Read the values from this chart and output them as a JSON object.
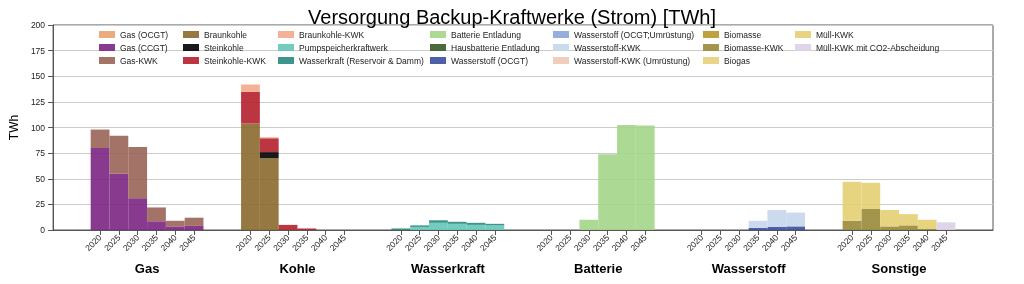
{
  "chart_data": {
    "type": "bar",
    "stacked": true,
    "title": "Versorgung Backup-Kraftwerke (Strom) [TWh]",
    "ylabel": "TWh",
    "categories": [
      null,
      null,
      "2020",
      "2025",
      "2030",
      "2035",
      "2040",
      "2045",
      null,
      null,
      "2020",
      "2025",
      "2030",
      "2035",
      "2040",
      "2045",
      null,
      null,
      "2020",
      "2025",
      "2030",
      "2035",
      "2040",
      "2045",
      null,
      null,
      "2020",
      "2025",
      "2030",
      "2035",
      "2040",
      "2045",
      null,
      null,
      "2020",
      "2025",
      "2030",
      "2035",
      "2040",
      "2045",
      null,
      null,
      "2020",
      "2025",
      "2030",
      "2035",
      "2040",
      "2045",
      null,
      null
    ],
    "annotations": [
      "Gas",
      "Kohle",
      "Wasserkraft",
      "Batterie",
      "Wasserstoff",
      "Sonstige"
    ],
    "ylim": [
      0,
      200
    ],
    "yticks": [
      0,
      25,
      50,
      75,
      100,
      125,
      150,
      175,
      200
    ],
    "grid": "y",
    "legend": "top",
    "series": [
      {
        "name": "Gas (OCGT)",
        "color": "#e9a36f",
        "values": [
          null,
          null,
          null,
          null,
          null,
          null,
          null,
          null,
          null,
          null,
          null,
          null,
          null,
          null,
          null,
          null,
          null,
          null,
          null,
          null,
          null,
          null,
          null,
          null,
          null,
          null,
          null,
          null,
          null,
          null,
          null,
          null,
          null,
          null,
          null,
          null,
          null,
          null,
          null,
          null,
          null,
          null,
          null,
          null,
          null,
          null,
          null,
          null,
          null,
          null
        ]
      },
      {
        "name": "Gas (CCGT)",
        "color": "#7b2582",
        "values": [
          null,
          null,
          80,
          55,
          31,
          8.5,
          3.5,
          4,
          null,
          null,
          null,
          null,
          null,
          null,
          null,
          null,
          null,
          null,
          null,
          null,
          null,
          null,
          null,
          null,
          null,
          null,
          null,
          null,
          null,
          null,
          null,
          null,
          null,
          null,
          null,
          null,
          null,
          null,
          null,
          null,
          null,
          null,
          null,
          null,
          null,
          null,
          null,
          null,
          null,
          null
        ]
      },
      {
        "name": "Gas-KWK",
        "color": "#9a6458",
        "values": [
          null,
          null,
          18,
          37,
          50,
          13.5,
          5.5,
          8,
          null,
          null,
          null,
          null,
          null,
          null,
          null,
          null,
          null,
          null,
          null,
          null,
          null,
          null,
          null,
          null,
          null,
          null,
          null,
          null,
          null,
          null,
          null,
          null,
          null,
          null,
          null,
          null,
          null,
          null,
          null,
          null,
          null,
          null,
          null,
          null,
          null,
          null,
          null,
          null,
          null,
          null
        ]
      },
      {
        "name": "Braunkohle",
        "color": "#8b6a2e",
        "values": [
          null,
          null,
          null,
          null,
          null,
          null,
          null,
          null,
          null,
          null,
          104,
          70,
          null,
          null,
          null,
          null,
          null,
          null,
          null,
          null,
          null,
          null,
          null,
          null,
          null,
          null,
          null,
          null,
          null,
          null,
          null,
          null,
          null,
          null,
          null,
          null,
          null,
          null,
          null,
          null,
          null,
          null,
          null,
          null,
          null,
          null,
          null,
          null,
          null,
          null
        ]
      },
      {
        "name": "Steinkohle",
        "color": "#000000",
        "values": [
          null,
          null,
          null,
          null,
          null,
          null,
          null,
          null,
          null,
          null,
          null,
          6,
          null,
          null,
          null,
          null,
          null,
          null,
          null,
          null,
          null,
          null,
          null,
          null,
          null,
          null,
          null,
          null,
          null,
          null,
          null,
          null,
          null,
          null,
          null,
          null,
          null,
          null,
          null,
          null,
          null,
          null,
          null,
          null,
          null,
          null,
          null,
          null,
          null,
          null
        ]
      },
      {
        "name": "Steinkohle-KWK",
        "color": "#b5202d",
        "values": [
          null,
          null,
          null,
          null,
          null,
          null,
          null,
          null,
          null,
          null,
          31,
          13.5,
          5,
          1.5,
          null,
          null,
          null,
          null,
          null,
          null,
          null,
          null,
          null,
          null,
          null,
          null,
          null,
          null,
          null,
          null,
          null,
          null,
          null,
          null,
          null,
          null,
          null,
          null,
          null,
          null,
          null,
          null,
          null,
          null,
          null,
          null,
          null,
          null,
          null,
          null
        ]
      },
      {
        "name": "Braunkohle-KWK",
        "color": "#f4a98a",
        "values": [
          null,
          null,
          null,
          null,
          null,
          null,
          null,
          null,
          null,
          null,
          7,
          1,
          null,
          null,
          null,
          null,
          null,
          null,
          null,
          null,
          null,
          null,
          null,
          null,
          null,
          null,
          null,
          null,
          null,
          null,
          null,
          null,
          null,
          null,
          null,
          null,
          null,
          null,
          null,
          null,
          null,
          null,
          null,
          null,
          null,
          null,
          null,
          null,
          null,
          null
        ]
      },
      {
        "name": "Pumpspeicherkraftwerk",
        "color": "#63c6b8",
        "values": [
          null,
          null,
          null,
          null,
          null,
          null,
          null,
          null,
          null,
          null,
          null,
          null,
          null,
          null,
          null,
          null,
          null,
          null,
          null,
          3,
          7,
          6,
          5,
          4.5,
          null,
          null,
          null,
          null,
          null,
          null,
          null,
          null,
          null,
          null,
          null,
          null,
          null,
          null,
          null,
          null,
          null,
          null,
          null,
          null,
          null,
          null,
          null,
          null,
          null,
          null
        ]
      },
      {
        "name": "Wasserkraft (Reservoir & Damm)",
        "color": "#2a8a80",
        "values": [
          null,
          null,
          null,
          null,
          null,
          null,
          null,
          null,
          null,
          null,
          null,
          null,
          null,
          null,
          null,
          null,
          null,
          null,
          1.5,
          1.5,
          2.5,
          2,
          2,
          1.5,
          null,
          null,
          null,
          null,
          null,
          null,
          null,
          null,
          null,
          null,
          null,
          null,
          null,
          null,
          null,
          null,
          null,
          null,
          null,
          null,
          null,
          null,
          null,
          null,
          null,
          null
        ]
      },
      {
        "name": "Batterie Entladung",
        "color": "#a3d68a",
        "values": [
          null,
          null,
          null,
          null,
          null,
          null,
          null,
          null,
          null,
          null,
          null,
          null,
          null,
          null,
          null,
          null,
          null,
          null,
          null,
          null,
          null,
          null,
          null,
          null,
          null,
          null,
          null,
          null,
          10,
          74,
          102.5,
          102,
          null,
          null,
          null,
          null,
          null,
          null,
          null,
          null,
          null,
          null,
          null,
          null,
          null,
          null,
          null,
          null,
          null,
          null
        ]
      },
      {
        "name": "Hausbatterie Entladung",
        "color": "#3a5a25",
        "values": [
          null,
          null,
          null,
          null,
          null,
          null,
          null,
          null,
          null,
          null,
          null,
          null,
          null,
          null,
          null,
          null,
          null,
          null,
          null,
          null,
          null,
          null,
          null,
          null,
          null,
          null,
          null,
          null,
          null,
          null,
          null,
          null,
          null,
          null,
          null,
          null,
          null,
          null,
          null,
          null,
          null,
          null,
          null,
          null,
          null,
          null,
          null,
          null,
          null,
          null
        ]
      },
      {
        "name": "Wasserstoff (OCGT)",
        "color": "#3a4fa0",
        "values": [
          null,
          null,
          null,
          null,
          null,
          null,
          null,
          null,
          null,
          null,
          null,
          null,
          null,
          null,
          null,
          null,
          null,
          null,
          null,
          null,
          null,
          null,
          null,
          null,
          null,
          null,
          null,
          null,
          null,
          null,
          null,
          null,
          null,
          null,
          null,
          null,
          null,
          2,
          3,
          3.5,
          null,
          null,
          null,
          null,
          null,
          null,
          null,
          null,
          null,
          null
        ]
      },
      {
        "name": "Wasserstoff (OCGT;Umrüstung)",
        "color": "#8aa6d8",
        "values": [
          null,
          null,
          null,
          null,
          null,
          null,
          null,
          null,
          null,
          null,
          null,
          null,
          null,
          null,
          null,
          null,
          null,
          null,
          null,
          null,
          null,
          null,
          null,
          null,
          null,
          null,
          null,
          null,
          null,
          null,
          null,
          null,
          null,
          null,
          null,
          null,
          null,
          null,
          null,
          null,
          null,
          null,
          null,
          null,
          null,
          null,
          null,
          null,
          null,
          null
        ]
      },
      {
        "name": "Wasserstoff-KWK",
        "color": "#c5d6ea",
        "values": [
          null,
          null,
          null,
          null,
          null,
          null,
          null,
          null,
          null,
          null,
          null,
          null,
          null,
          null,
          null,
          null,
          null,
          null,
          null,
          null,
          null,
          null,
          null,
          null,
          null,
          null,
          null,
          null,
          null,
          null,
          null,
          null,
          null,
          null,
          null,
          null,
          null,
          7,
          16.5,
          13.5,
          null,
          null,
          null,
          null,
          null,
          null,
          null,
          null,
          null,
          null
        ]
      },
      {
        "name": "Wasserstoff-KWK (Umrüstung)",
        "color": "#edc9b5",
        "values": [
          null,
          null,
          null,
          null,
          null,
          null,
          null,
          null,
          null,
          null,
          null,
          null,
          null,
          null,
          null,
          null,
          null,
          null,
          null,
          null,
          null,
          null,
          null,
          null,
          null,
          null,
          null,
          null,
          null,
          null,
          null,
          null,
          null,
          null,
          null,
          null,
          null,
          null,
          null,
          null,
          null,
          null,
          null,
          null,
          null,
          null,
          null,
          null,
          null,
          null
        ]
      },
      {
        "name": "Biomasse",
        "color": "#b8982a",
        "values": [
          null,
          null,
          null,
          null,
          null,
          null,
          null,
          null,
          null,
          null,
          null,
          null,
          null,
          null,
          null,
          null,
          null,
          null,
          null,
          null,
          null,
          null,
          null,
          null,
          null,
          null,
          null,
          null,
          null,
          null,
          null,
          null,
          null,
          null,
          null,
          null,
          null,
          null,
          null,
          null,
          null,
          null,
          null,
          null,
          null,
          null,
          null,
          null,
          null,
          null
        ]
      },
      {
        "name": "Biomasse-KWK",
        "color": "#9a8a3a",
        "values": [
          null,
          null,
          null,
          null,
          null,
          null,
          null,
          null,
          null,
          null,
          null,
          null,
          null,
          null,
          null,
          null,
          null,
          null,
          null,
          null,
          null,
          null,
          null,
          null,
          null,
          null,
          null,
          null,
          null,
          null,
          null,
          null,
          null,
          null,
          null,
          null,
          null,
          null,
          null,
          null,
          null,
          null,
          9,
          20.5,
          3.5,
          4.5,
          1,
          null,
          null,
          null
        ]
      },
      {
        "name": "Biogas",
        "color": "#e6d07a",
        "values": [
          null,
          null,
          null,
          null,
          null,
          null,
          null,
          null,
          null,
          null,
          null,
          null,
          null,
          null,
          null,
          null,
          null,
          null,
          null,
          null,
          null,
          null,
          null,
          null,
          null,
          null,
          null,
          null,
          null,
          null,
          null,
          null,
          null,
          null,
          null,
          null,
          null,
          null,
          null,
          null,
          null,
          null,
          null,
          null,
          null,
          null,
          null,
          null,
          null,
          null
        ]
      },
      {
        "name": "Müll-KWK",
        "color": "#e4cf72",
        "values": [
          null,
          null,
          null,
          null,
          null,
          null,
          null,
          null,
          null,
          null,
          null,
          null,
          null,
          null,
          null,
          null,
          null,
          null,
          null,
          null,
          null,
          null,
          null,
          null,
          null,
          null,
          null,
          null,
          null,
          null,
          null,
          null,
          null,
          null,
          null,
          null,
          null,
          null,
          null,
          null,
          null,
          null,
          38,
          25.5,
          16,
          11,
          9,
          null,
          null,
          null
        ]
      },
      {
        "name": "Müll-KWK mit CO2-Abscheidung",
        "color": "#ddd0e6",
        "values": [
          null,
          null,
          null,
          null,
          null,
          null,
          null,
          null,
          null,
          null,
          null,
          null,
          null,
          null,
          null,
          null,
          null,
          null,
          null,
          null,
          null,
          null,
          null,
          null,
          null,
          null,
          null,
          null,
          null,
          null,
          null,
          null,
          null,
          null,
          null,
          null,
          null,
          null,
          null,
          null,
          null,
          null,
          null,
          null,
          null,
          null,
          null,
          7.5,
          null,
          null
        ]
      }
    ]
  }
}
